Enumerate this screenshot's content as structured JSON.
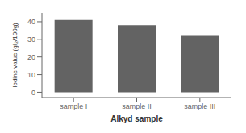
{
  "chart_data": {
    "type": "bar",
    "categories": [
      "sample I",
      "sample II",
      "sample III"
    ],
    "values": [
      41,
      38,
      32
    ],
    "color": "#636363",
    "xlabel": "Alkyd sample",
    "ylabel": "Iodine value (gI₂/100g)",
    "ylim": [
      -3,
      45
    ],
    "yticks": [
      0,
      10,
      20,
      30,
      40
    ],
    "grid": false
  }
}
